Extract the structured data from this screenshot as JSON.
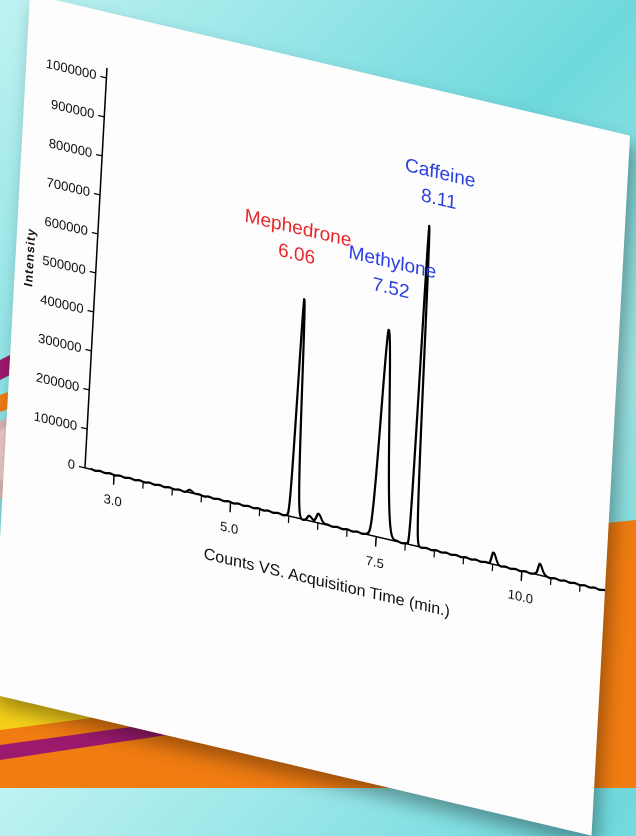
{
  "colors": {
    "background_top": "#bff2f2",
    "background_accent": "#5fcfd4",
    "paper": "#fdfdfd",
    "trace": "#000000",
    "red_label": "#e8262a",
    "blue_label": "#2a3fe0",
    "ribbon_purple": "#9c1a6e",
    "ribbon_orange": "#f07c12",
    "ribbon_yellow": "#f6d11a"
  },
  "decoration": {
    "left_objects": "pill-tablets-image",
    "ribbons": "diagonal-color-ribbons"
  },
  "chart_data": {
    "type": "line",
    "xlabel": "Counts VS. Acquisition Time (min.)",
    "ylabel": "Intensity",
    "xlim": [
      2.5,
      11.6
    ],
    "ylim": [
      0,
      1000000
    ],
    "x_ticks": [
      {
        "value": 3.0,
        "label": "3.0"
      },
      {
        "value": 5.0,
        "label": "5.0"
      },
      {
        "value": 7.5,
        "label": "7.5"
      },
      {
        "value": 10.0,
        "label": "10.0"
      }
    ],
    "y_ticks": [
      {
        "value": 0,
        "label": "0"
      },
      {
        "value": 100000,
        "label": "100000"
      },
      {
        "value": 200000,
        "label": "200000"
      },
      {
        "value": 300000,
        "label": "300000"
      },
      {
        "value": 400000,
        "label": "400000"
      },
      {
        "value": 500000,
        "label": "500000"
      },
      {
        "value": 600000,
        "label": "600000"
      },
      {
        "value": 700000,
        "label": "700000"
      },
      {
        "value": 800000,
        "label": "800000"
      },
      {
        "value": 900000,
        "label": "900000"
      },
      {
        "value": 1000000,
        "label": "1000000"
      }
    ],
    "series": [
      {
        "baseline": 0,
        "peaks": [
          {
            "x": 4.3,
            "y": 6000,
            "width": 0.03
          },
          {
            "x": 6.06,
            "y": 560000,
            "width": 0.025
          },
          {
            "x": 6.35,
            "y": 12000,
            "width": 0.03
          },
          {
            "x": 6.5,
            "y": 22000,
            "width": 0.03
          },
          {
            "x": 7.52,
            "y": 530000,
            "width": 0.05
          },
          {
            "x": 8.11,
            "y": 820000,
            "width": 0.02
          },
          {
            "x": 9.5,
            "y": 30000,
            "width": 0.025
          },
          {
            "x": 10.3,
            "y": 30000,
            "width": 0.025
          }
        ]
      }
    ],
    "annotations": [
      {
        "name": "Mephedrone",
        "rt": "6.06",
        "x": 6.06,
        "y": 560000,
        "color": "red"
      },
      {
        "name": "Methylone",
        "rt": "7.52",
        "x": 7.52,
        "y": 530000,
        "color": "blue"
      },
      {
        "name": "Caffeine",
        "rt": "8.11",
        "x": 8.11,
        "y": 820000,
        "color": "blue"
      }
    ]
  }
}
